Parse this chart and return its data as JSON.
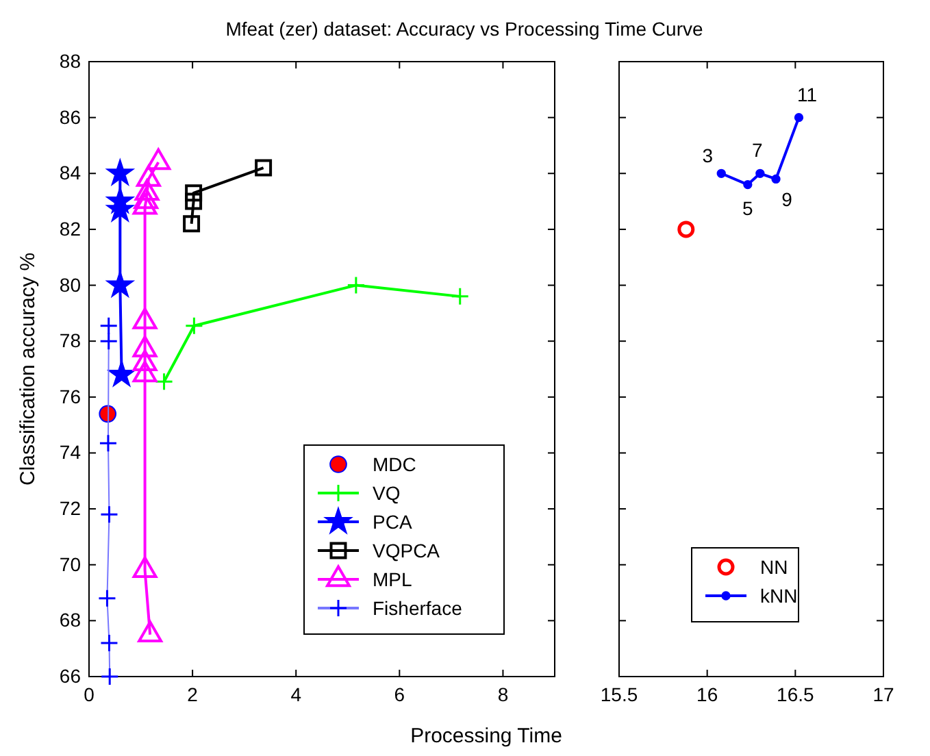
{
  "chart_data": [
    {
      "type": "line",
      "title": "Mfeat (zer) dataset: Accuracy vs Processing Time Curve",
      "xlabel": "Processing Time",
      "ylabel": "Classification accuracy %",
      "xlim": [
        0,
        9
      ],
      "xticks": [
        0,
        2,
        4,
        6,
        8
      ],
      "ylim": [
        66,
        88
      ],
      "yticks": [
        66,
        68,
        70,
        72,
        74,
        76,
        78,
        80,
        82,
        84,
        86,
        88
      ],
      "grid": false,
      "legend": "bottom right",
      "series": [
        {
          "name": "MDC",
          "type": "scatter",
          "marker": "circle",
          "color": "#ff0000",
          "x": [
            0.36
          ],
          "values": [
            75.4
          ]
        },
        {
          "name": "VQ",
          "marker": "cross",
          "color": "#00ff00",
          "x": [
            1.45,
            2.03,
            5.16,
            7.17
          ],
          "values": [
            76.55,
            78.55,
            80.0,
            79.6
          ]
        },
        {
          "name": "PCA",
          "marker": "star",
          "color": "#0000ff",
          "x": [
            0.6,
            0.6,
            0.6,
            0.6,
            0.63
          ],
          "values": [
            84.0,
            83.0,
            82.7,
            80.0,
            76.8
          ]
        },
        {
          "name": "VQPCA",
          "marker": "square",
          "color": "#000000",
          "x": [
            1.98,
            2.02,
            2.02,
            3.37
          ],
          "values": [
            82.2,
            83.0,
            83.3,
            84.2
          ]
        },
        {
          "name": "MPL",
          "marker": "triangle",
          "color": "#ff00ff",
          "x": [
            1.18,
            1.08,
            1.08,
            1.08,
            1.08,
            1.08,
            1.08,
            1.1,
            1.12,
            1.15,
            1.34
          ],
          "values": [
            67.5,
            69.8,
            76.8,
            77.2,
            77.7,
            78.7,
            82.8,
            83.0,
            83.3,
            83.8,
            84.4
          ]
        },
        {
          "name": "Fisherface",
          "marker": "cross",
          "color": "#7777ff",
          "x": [
            0.38,
            0.38,
            0.37,
            0.39,
            0.35,
            0.39,
            0.4
          ],
          "values": [
            78.55,
            78.0,
            74.35,
            71.8,
            68.8,
            67.2,
            66
          ]
        }
      ]
    },
    {
      "type": "line",
      "xlim": [
        15.5,
        17
      ],
      "xticks": [
        15.5,
        16,
        16.5,
        17
      ],
      "ylim": [
        66,
        88
      ],
      "yticks": [
        66,
        68,
        70,
        72,
        74,
        76,
        78,
        80,
        82,
        84,
        86,
        88
      ],
      "tick_labels": "x",
      "grid": false,
      "legend": "bottom right",
      "series": [
        {
          "name": "NN",
          "type": "scatter",
          "marker": "circle",
          "color": "#ff0000",
          "x": [
            15.88
          ],
          "values": [
            82.0
          ]
        },
        {
          "name": "kNN",
          "marker": "circle",
          "color": "#0000ff",
          "x": [
            16.08,
            16.23,
            16.3,
            16.39,
            16.52
          ],
          "values": [
            84.0,
            83.6,
            84.0,
            83.8,
            86.0
          ]
        }
      ],
      "annotations": [
        {
          "text": "3",
          "x": 16.08,
          "y": 84.0
        },
        {
          "text": "5",
          "x": 16.23,
          "y": 83.6
        },
        {
          "text": "7",
          "x": 16.3,
          "y": 84.0
        },
        {
          "text": "9",
          "x": 16.39,
          "y": 83.8
        },
        {
          "text": "11",
          "x": 16.52,
          "y": 86.0
        }
      ]
    }
  ]
}
